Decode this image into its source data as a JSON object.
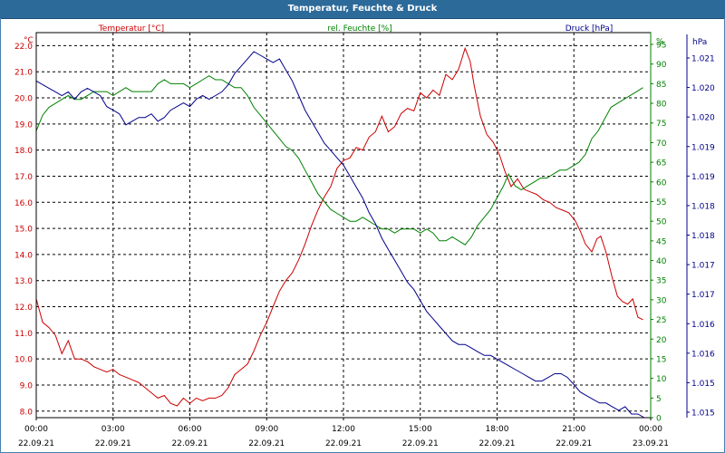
{
  "window": {
    "title": "Temperatur, Feuchte & Druck"
  },
  "legend": {
    "temperature": "Temperatur [°C]",
    "humidity": "rel. Feuchte [%]",
    "pressure": "Druck [hPa]"
  },
  "colors": {
    "temperature": "#cc0000",
    "humidity": "#008000",
    "pressure": "#00008b",
    "grid": "#000000",
    "title_bar": "#2c6a9a"
  },
  "chart_data": {
    "type": "line",
    "title": "Temperatur, Feuchte & Druck",
    "grid": true,
    "x_ticks": [
      {
        "time": "00:00",
        "date": "22.09.21"
      },
      {
        "time": "03:00",
        "date": "22.09.21"
      },
      {
        "time": "06:00",
        "date": "22.09.21"
      },
      {
        "time": "09:00",
        "date": "22.09.21"
      },
      {
        "time": "12:00",
        "date": "22.09.21"
      },
      {
        "time": "15:00",
        "date": "22.09.21"
      },
      {
        "time": "18:00",
        "date": "22.09.21"
      },
      {
        "time": "21:00",
        "date": "22.09.21"
      },
      {
        "time": "00:00",
        "date": "23.09.21"
      }
    ],
    "x_range": [
      "22.09.21 00:00",
      "23.09.21 00:00"
    ],
    "axes": {
      "temperature": {
        "unit": "°C",
        "range": [
          7.75,
          22.5
        ],
        "ticks": [
          "8.0",
          "9.0",
          "10.0",
          "11.0",
          "12.0",
          "13.0",
          "14.0",
          "15.0",
          "16.0",
          "17.0",
          "18.0",
          "19.0",
          "20.0",
          "21.0",
          "22.0"
        ]
      },
      "humidity": {
        "unit": "%",
        "range": [
          0,
          98
        ],
        "ticks": [
          "0",
          "5",
          "10",
          "15",
          "20",
          "25",
          "30",
          "35",
          "40",
          "45",
          "50",
          "55",
          "60",
          "65",
          "70",
          "75",
          "80",
          "85",
          "90",
          "95",
          "%"
        ]
      },
      "pressure": {
        "unit": "hPa",
        "ticks": [
          "1.015",
          "1.015",
          "1.016",
          "1.016",
          "1.017",
          "1.017",
          "1.018",
          "1.018",
          "1.019",
          "1.019",
          "1.020",
          "1.020",
          "1.021"
        ]
      }
    },
    "series": [
      {
        "name": "Temperatur [°C]",
        "axis": "temperature",
        "points": [
          [
            0,
            12.3
          ],
          [
            0.25,
            11.4
          ],
          [
            0.5,
            11.2
          ],
          [
            0.75,
            10.9
          ],
          [
            1,
            10.2
          ],
          [
            1.25,
            10.7
          ],
          [
            1.5,
            10.0
          ],
          [
            1.75,
            10.0
          ],
          [
            2,
            9.9
          ],
          [
            2.25,
            9.7
          ],
          [
            2.5,
            9.6
          ],
          [
            2.75,
            9.5
          ],
          [
            3,
            9.6
          ],
          [
            3.25,
            9.4
          ],
          [
            3.5,
            9.3
          ],
          [
            3.75,
            9.2
          ],
          [
            4,
            9.1
          ],
          [
            4.25,
            8.9
          ],
          [
            4.5,
            8.7
          ],
          [
            4.75,
            8.5
          ],
          [
            5,
            8.6
          ],
          [
            5.25,
            8.3
          ],
          [
            5.5,
            8.2
          ],
          [
            5.75,
            8.5
          ],
          [
            6,
            8.3
          ],
          [
            6.25,
            8.5
          ],
          [
            6.5,
            8.4
          ],
          [
            6.75,
            8.5
          ],
          [
            7,
            8.5
          ],
          [
            7.25,
            8.6
          ],
          [
            7.5,
            8.9
          ],
          [
            7.75,
            9.4
          ],
          [
            8,
            9.6
          ],
          [
            8.25,
            9.8
          ],
          [
            8.5,
            10.3
          ],
          [
            8.75,
            10.9
          ],
          [
            9,
            11.4
          ],
          [
            9.25,
            12.0
          ],
          [
            9.5,
            12.6
          ],
          [
            9.75,
            13.0
          ],
          [
            10,
            13.3
          ],
          [
            10.25,
            13.8
          ],
          [
            10.5,
            14.4
          ],
          [
            10.75,
            15.1
          ],
          [
            11,
            15.7
          ],
          [
            11.25,
            16.2
          ],
          [
            11.5,
            16.6
          ],
          [
            11.75,
            17.3
          ],
          [
            12,
            17.6
          ],
          [
            12.25,
            17.7
          ],
          [
            12.5,
            18.1
          ],
          [
            12.75,
            18.0
          ],
          [
            13,
            18.5
          ],
          [
            13.25,
            18.7
          ],
          [
            13.5,
            19.3
          ],
          [
            13.75,
            18.7
          ],
          [
            14,
            18.9
          ],
          [
            14.25,
            19.4
          ],
          [
            14.5,
            19.6
          ],
          [
            14.75,
            19.5
          ],
          [
            15,
            20.2
          ],
          [
            15.25,
            20.0
          ],
          [
            15.5,
            20.3
          ],
          [
            15.75,
            20.1
          ],
          [
            16,
            20.9
          ],
          [
            16.25,
            20.7
          ],
          [
            16.5,
            21.1
          ],
          [
            16.75,
            21.9
          ],
          [
            16.95,
            21.4
          ],
          [
            17.1,
            20.5
          ],
          [
            17.35,
            19.3
          ],
          [
            17.6,
            18.6
          ],
          [
            17.85,
            18.3
          ],
          [
            18.1,
            17.8
          ],
          [
            18.3,
            17.2
          ],
          [
            18.55,
            16.6
          ],
          [
            18.8,
            16.9
          ],
          [
            19.05,
            16.5
          ],
          [
            19.3,
            16.4
          ],
          [
            19.55,
            16.3
          ],
          [
            19.8,
            16.1
          ],
          [
            20.05,
            16.0
          ],
          [
            20.3,
            15.8
          ],
          [
            20.55,
            15.7
          ],
          [
            20.8,
            15.6
          ],
          [
            21.05,
            15.3
          ],
          [
            21.25,
            14.9
          ],
          [
            21.45,
            14.4
          ],
          [
            21.7,
            14.1
          ],
          [
            21.9,
            14.6
          ],
          [
            22.05,
            14.7
          ],
          [
            22.25,
            14.1
          ],
          [
            22.5,
            13.1
          ],
          [
            22.7,
            12.4
          ],
          [
            22.9,
            12.2
          ],
          [
            23.1,
            12.1
          ],
          [
            23.3,
            12.3
          ],
          [
            23.5,
            11.6
          ],
          [
            23.7,
            11.5
          ]
        ]
      },
      {
        "name": "rel. Feuchte [%]",
        "axis": "humidity",
        "points": [
          [
            0,
            73
          ],
          [
            0.25,
            77
          ],
          [
            0.5,
            79
          ],
          [
            0.75,
            80
          ],
          [
            1,
            81
          ],
          [
            1.25,
            82
          ],
          [
            1.5,
            81
          ],
          [
            1.75,
            81
          ],
          [
            2,
            82
          ],
          [
            2.25,
            83
          ],
          [
            2.5,
            83
          ],
          [
            2.75,
            83
          ],
          [
            3,
            82
          ],
          [
            3.25,
            83
          ],
          [
            3.5,
            84
          ],
          [
            3.75,
            83
          ],
          [
            4,
            83
          ],
          [
            4.25,
            83
          ],
          [
            4.5,
            83
          ],
          [
            4.75,
            85
          ],
          [
            5,
            86
          ],
          [
            5.25,
            85
          ],
          [
            5.5,
            85
          ],
          [
            5.75,
            85
          ],
          [
            6,
            84
          ],
          [
            6.25,
            85
          ],
          [
            6.5,
            86
          ],
          [
            6.75,
            87
          ],
          [
            7,
            86
          ],
          [
            7.25,
            86
          ],
          [
            7.5,
            85
          ],
          [
            7.75,
            84
          ],
          [
            8,
            84
          ],
          [
            8.25,
            82
          ],
          [
            8.5,
            79
          ],
          [
            8.75,
            77
          ],
          [
            9,
            75
          ],
          [
            9.25,
            73
          ],
          [
            9.5,
            71
          ],
          [
            9.75,
            69
          ],
          [
            10,
            68
          ],
          [
            10.25,
            66
          ],
          [
            10.5,
            63
          ],
          [
            10.75,
            60
          ],
          [
            11,
            57
          ],
          [
            11.25,
            55
          ],
          [
            11.5,
            53
          ],
          [
            11.75,
            52
          ],
          [
            12,
            51
          ],
          [
            12.25,
            50
          ],
          [
            12.5,
            50
          ],
          [
            12.75,
            51
          ],
          [
            13,
            50
          ],
          [
            13.25,
            49
          ],
          [
            13.5,
            48
          ],
          [
            13.75,
            48
          ],
          [
            14,
            47
          ],
          [
            14.25,
            48
          ],
          [
            14.5,
            48
          ],
          [
            14.75,
            48
          ],
          [
            15,
            47
          ],
          [
            15.25,
            48
          ],
          [
            15.5,
            47
          ],
          [
            15.75,
            45
          ],
          [
            16,
            45
          ],
          [
            16.25,
            46
          ],
          [
            16.5,
            45
          ],
          [
            16.75,
            44
          ],
          [
            17,
            46
          ],
          [
            17.25,
            49
          ],
          [
            17.5,
            51
          ],
          [
            17.75,
            53
          ],
          [
            18,
            56
          ],
          [
            18.25,
            59
          ],
          [
            18.45,
            62
          ],
          [
            18.7,
            59
          ],
          [
            18.95,
            58
          ],
          [
            19.2,
            59
          ],
          [
            19.45,
            60
          ],
          [
            19.7,
            61
          ],
          [
            19.95,
            61
          ],
          [
            20.2,
            62
          ],
          [
            20.45,
            63
          ],
          [
            20.7,
            63
          ],
          [
            20.95,
            64
          ],
          [
            21.2,
            65
          ],
          [
            21.45,
            67
          ],
          [
            21.7,
            71
          ],
          [
            21.95,
            73
          ],
          [
            22.2,
            76
          ],
          [
            22.45,
            79
          ],
          [
            22.7,
            80
          ],
          [
            22.95,
            81
          ],
          [
            23.2,
            82
          ],
          [
            23.45,
            83
          ],
          [
            23.7,
            84
          ]
        ]
      },
      {
        "name": "Druck [hPa]",
        "axis": "pressure",
        "points": [
          [
            0,
            92
          ],
          [
            0.25,
            91
          ],
          [
            0.5,
            90
          ],
          [
            0.75,
            89
          ],
          [
            1,
            88
          ],
          [
            1.25,
            89
          ],
          [
            1.5,
            87
          ],
          [
            1.75,
            89
          ],
          [
            2,
            90
          ],
          [
            2.25,
            89
          ],
          [
            2.5,
            88
          ],
          [
            2.75,
            85
          ],
          [
            3,
            84
          ],
          [
            3.25,
            83
          ],
          [
            3.5,
            80
          ],
          [
            3.75,
            81
          ],
          [
            4,
            82
          ],
          [
            4.25,
            82
          ],
          [
            4.5,
            83
          ],
          [
            4.75,
            81
          ],
          [
            5,
            82
          ],
          [
            5.25,
            84
          ],
          [
            5.5,
            85
          ],
          [
            5.75,
            86
          ],
          [
            6,
            85
          ],
          [
            6.25,
            87
          ],
          [
            6.5,
            88
          ],
          [
            6.75,
            87
          ],
          [
            7,
            88
          ],
          [
            7.25,
            89
          ],
          [
            7.5,
            91
          ],
          [
            7.75,
            94
          ],
          [
            8,
            96
          ],
          [
            8.25,
            98
          ],
          [
            8.5,
            100
          ],
          [
            8.75,
            99
          ],
          [
            9,
            98
          ],
          [
            9.25,
            97
          ],
          [
            9.5,
            98
          ],
          [
            9.75,
            95
          ],
          [
            10,
            92
          ],
          [
            10.25,
            88
          ],
          [
            10.5,
            84
          ],
          [
            10.75,
            81
          ],
          [
            11,
            78
          ],
          [
            11.25,
            75
          ],
          [
            11.5,
            73
          ],
          [
            11.75,
            71
          ],
          [
            12,
            69
          ],
          [
            12.25,
            66
          ],
          [
            12.5,
            63
          ],
          [
            12.75,
            60
          ],
          [
            13,
            56
          ],
          [
            13.25,
            53
          ],
          [
            13.5,
            49
          ],
          [
            13.75,
            46
          ],
          [
            14,
            43
          ],
          [
            14.25,
            40
          ],
          [
            14.5,
            37
          ],
          [
            14.75,
            35
          ],
          [
            15,
            32
          ],
          [
            15.25,
            29
          ],
          [
            15.5,
            27
          ],
          [
            15.75,
            25
          ],
          [
            16,
            23
          ],
          [
            16.25,
            21
          ],
          [
            16.5,
            20
          ],
          [
            16.75,
            20
          ],
          [
            17,
            19
          ],
          [
            17.25,
            18
          ],
          [
            17.5,
            17
          ],
          [
            17.75,
            17
          ],
          [
            18,
            16
          ],
          [
            18.25,
            15
          ],
          [
            18.5,
            14
          ],
          [
            18.75,
            13
          ],
          [
            19,
            12
          ],
          [
            19.25,
            11
          ],
          [
            19.5,
            10
          ],
          [
            19.75,
            10
          ],
          [
            20,
            11
          ],
          [
            20.25,
            12
          ],
          [
            20.5,
            12
          ],
          [
            20.75,
            11
          ],
          [
            21,
            9
          ],
          [
            21.25,
            7
          ],
          [
            21.5,
            6
          ],
          [
            21.75,
            5
          ],
          [
            22,
            4
          ],
          [
            22.25,
            4
          ],
          [
            22.5,
            3
          ],
          [
            22.75,
            2
          ],
          [
            23,
            3
          ],
          [
            23.25,
            1
          ],
          [
            23.5,
            1
          ],
          [
            23.75,
            0
          ]
        ]
      }
    ]
  }
}
